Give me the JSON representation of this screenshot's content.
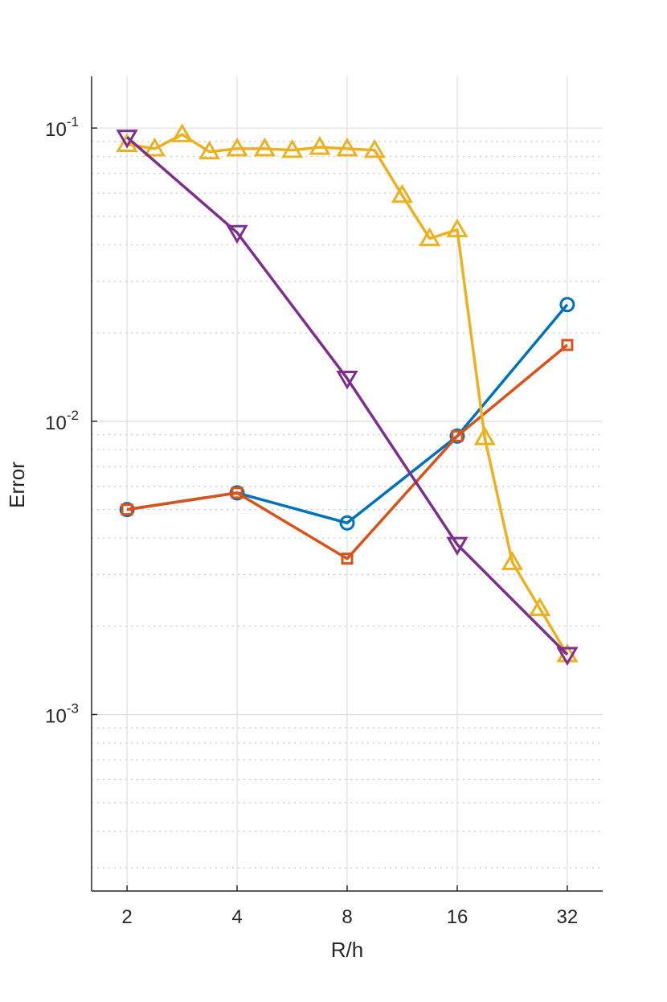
{
  "chart_data": {
    "type": "line",
    "xlabel": "R/h",
    "ylabel": "Error",
    "xscale": "log2",
    "yscale": "log10",
    "xlim": [
      1.6,
      40
    ],
    "ylim": [
      0.00025,
      0.15
    ],
    "grid": true,
    "legend": "none",
    "x_ticks": [
      {
        "value": 2,
        "label": "2"
      },
      {
        "value": 4,
        "label": "4"
      },
      {
        "value": 8,
        "label": "8"
      },
      {
        "value": 16,
        "label": "16"
      },
      {
        "value": 32,
        "label": "32"
      }
    ],
    "y_ticks": [
      {
        "value": 0.1,
        "base": "10",
        "exp": "-1"
      },
      {
        "value": 0.01,
        "base": "10",
        "exp": "-2"
      },
      {
        "value": 0.001,
        "base": "10",
        "exp": "-3"
      }
    ],
    "series": [
      {
        "color": "#0072BD",
        "marker": "circle",
        "x": [
          2,
          4,
          8,
          16,
          32
        ],
        "y": [
          0.005,
          0.0057,
          0.0045,
          0.0089,
          0.025
        ]
      },
      {
        "color": "#D95319",
        "marker": "square",
        "x": [
          2,
          4,
          8,
          16,
          32
        ],
        "y": [
          0.005,
          0.0057,
          0.0034,
          0.0089,
          0.0182
        ]
      },
      {
        "color": "#EDB120",
        "marker": "triangle-up",
        "x": [
          2,
          2.38,
          2.83,
          3.36,
          4,
          4.76,
          5.66,
          6.73,
          8,
          9.51,
          11.31,
          13.45,
          16,
          19.03,
          22.63,
          26.91,
          32
        ],
        "y": [
          0.088,
          0.085,
          0.095,
          0.083,
          0.085,
          0.085,
          0.084,
          0.086,
          0.085,
          0.084,
          0.059,
          0.042,
          0.045,
          0.0088,
          0.0033,
          0.0023,
          0.0016
        ]
      },
      {
        "color": "#7E2F8E",
        "marker": "triangle-down",
        "x": [
          2,
          4,
          8,
          16,
          32
        ],
        "y": [
          0.093,
          0.044,
          0.014,
          0.0038,
          0.0016
        ]
      }
    ]
  }
}
